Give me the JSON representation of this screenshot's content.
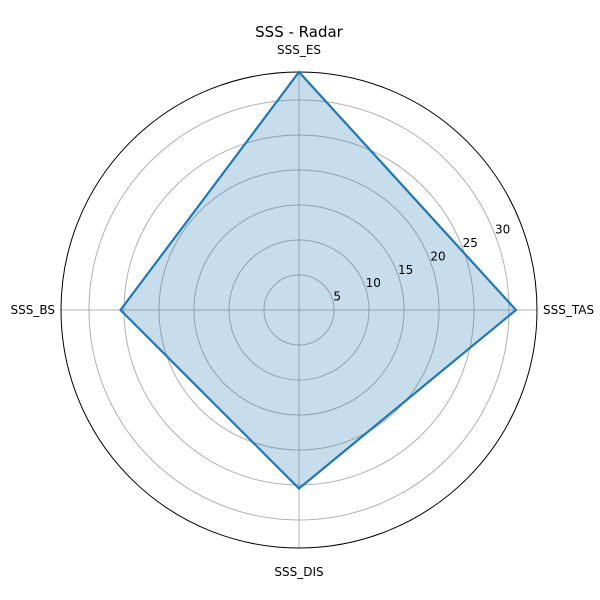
{
  "chart_data": {
    "type": "radar",
    "title": "SSS - Radar",
    "categories": [
      "SSS_TAS",
      "SSS_ES",
      "SSS_BS",
      "SSS_DIS"
    ],
    "series": [
      {
        "values": [
          31,
          34,
          25.5,
          25.5
        ]
      }
    ],
    "r_ticks": [
      5,
      10,
      15,
      20,
      25,
      30
    ],
    "rlim": [
      0,
      34
    ],
    "grid": true,
    "colors": {
      "line": "#1f77b4",
      "fill": "#1f77b4",
      "fill_opacity": 0.25
    }
  }
}
